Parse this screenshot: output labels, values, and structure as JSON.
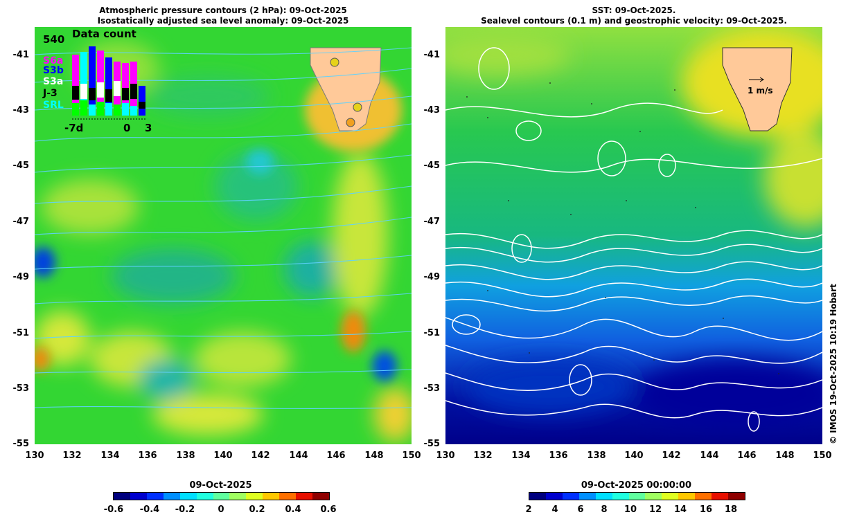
{
  "left_map": {
    "title_line1": "Atmospheric pressure contours (2 hPa): 09-Oct-2025",
    "title_line2": "Isostatically adjusted sea level anomaly: 09-Oct-2025",
    "x_ticks": [
      "130",
      "132",
      "134",
      "136",
      "138",
      "140",
      "142",
      "144",
      "146",
      "148",
      "150"
    ],
    "y_ticks": [
      "-41",
      "-43",
      "-45",
      "-47",
      "-49",
      "-51",
      "-53",
      "-55"
    ],
    "inset": {
      "title": "Data count",
      "max_label": "540",
      "missions": [
        "S6a",
        "S3b",
        "S3a",
        "J-3",
        "SRL"
      ],
      "mission_colors": [
        "#ff00ff",
        "#0000ff",
        "#ffffff",
        "#000000",
        "#00ffff"
      ],
      "x_labels": [
        "-7d",
        "0",
        "3"
      ]
    },
    "colorbar": {
      "title": "09-Oct-2025",
      "ticks": [
        "-0.6",
        "-0.4",
        "-0.2",
        "0",
        "0.2",
        "0.4",
        "0.6"
      ],
      "colors": [
        "#00007f",
        "#0000cf",
        "#0030ff",
        "#0090ff",
        "#00e0ff",
        "#20ffe0",
        "#60ff9f",
        "#a0ff60",
        "#e0ff20",
        "#ffc800",
        "#ff7000",
        "#e81000",
        "#8f0000"
      ]
    }
  },
  "right_map": {
    "title_line1": "SST: 09-Oct-2025.",
    "title_line2": "Sealevel contours (0.1 m) and geostrophic velocity: 09-Oct-2025.",
    "x_ticks": [
      "130",
      "132",
      "134",
      "136",
      "138",
      "140",
      "142",
      "144",
      "146",
      "148",
      "150"
    ],
    "y_ticks": [
      "-41",
      "-43",
      "-45",
      "-47",
      "-49",
      "-51",
      "-53",
      "-55"
    ],
    "velocity_label": "1 m/s",
    "colorbar": {
      "title": "09-Oct-2025 00:00:00",
      "ticks": [
        "2",
        "4",
        "6",
        "8",
        "10",
        "12",
        "14",
        "16",
        "18"
      ],
      "colors": [
        "#00007f",
        "#0000cf",
        "#0030ff",
        "#0090ff",
        "#00e0ff",
        "#20ffe0",
        "#60ff9f",
        "#a0ff60",
        "#e0ff20",
        "#ffc800",
        "#ff7000",
        "#e81000",
        "#8f0000"
      ]
    }
  },
  "credit": "© IMOS 19-Oct-2025 10:19 Hobart"
}
